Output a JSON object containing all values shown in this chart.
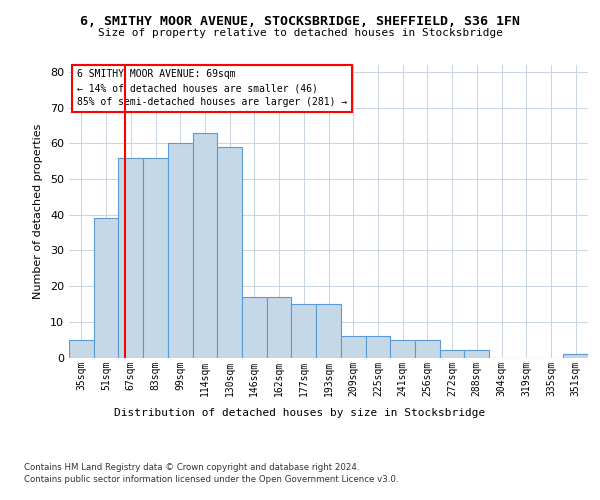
{
  "title_line1": "6, SMITHY MOOR AVENUE, STOCKSBRIDGE, SHEFFIELD, S36 1FN",
  "title_line2": "Size of property relative to detached houses in Stocksbridge",
  "xlabel": "Distribution of detached houses by size in Stocksbridge",
  "ylabel": "Number of detached properties",
  "categories": [
    "35sqm",
    "51sqm",
    "67sqm",
    "83sqm",
    "99sqm",
    "114sqm",
    "130sqm",
    "146sqm",
    "162sqm",
    "177sqm",
    "193sqm",
    "209sqm",
    "225sqm",
    "241sqm",
    "256sqm",
    "272sqm",
    "288sqm",
    "304sqm",
    "319sqm",
    "335sqm",
    "351sqm"
  ],
  "bar_heights": [
    5,
    39,
    56,
    56,
    60,
    63,
    59,
    17,
    17,
    15,
    15,
    6,
    6,
    5,
    5,
    2,
    2,
    0,
    0,
    0,
    1
  ],
  "bar_color": "#c5d8e8",
  "bar_edge_color": "#5b9bd5",
  "ylim": [
    0,
    82
  ],
  "yticks": [
    0,
    10,
    20,
    30,
    40,
    50,
    60,
    70,
    80
  ],
  "vline_x": 1.78,
  "property_label": "6 SMITHY MOOR AVENUE: 69sqm",
  "annotation_line1": "← 14% of detached houses are smaller (46)",
  "annotation_line2": "85% of semi-detached houses are larger (281) →",
  "footer_line1": "Contains HM Land Registry data © Crown copyright and database right 2024.",
  "footer_line2": "Contains public sector information licensed under the Open Government Licence v3.0.",
  "background_color": "#ffffff",
  "grid_color": "#c8d4e0"
}
